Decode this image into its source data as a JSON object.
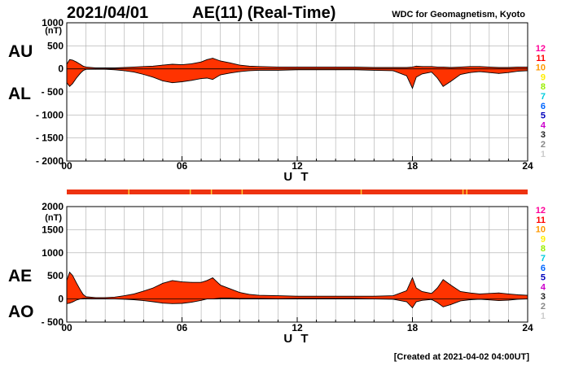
{
  "header": {
    "date": "2021/04/01",
    "title": "AE(11) (Real-Time)",
    "source": "WDC for Geomagnetism, Kyoto"
  },
  "footer": {
    "created": "[Created at 2021-04-02 04:00UT]"
  },
  "colors": {
    "fill": "#ff3300",
    "line": "#000000",
    "grid": "#aaaaaa",
    "bar": "#ee3311",
    "bar_tick": "#ffcc33"
  },
  "legend": {
    "items": [
      {
        "label": "12",
        "color": "#ff0099"
      },
      {
        "label": "11",
        "color": "#ff0000"
      },
      {
        "label": "10",
        "color": "#ff9900"
      },
      {
        "label": "9",
        "color": "#ffee00"
      },
      {
        "label": "8",
        "color": "#99ee00"
      },
      {
        "label": "7",
        "color": "#00ccdd"
      },
      {
        "label": "6",
        "color": "#0066ff"
      },
      {
        "label": "5",
        "color": "#0000bb"
      },
      {
        "label": "4",
        "color": "#cc00cc"
      },
      {
        "label": "3",
        "color": "#222222"
      },
      {
        "label": "2",
        "color": "#888888"
      },
      {
        "label": "1",
        "color": "#cccccc"
      }
    ]
  },
  "chart_data": [
    {
      "type": "area",
      "upper_label": "AU",
      "lower_label": "AL",
      "unit": "(nT)",
      "xlabel": "U T",
      "xlim": [
        0,
        24
      ],
      "ylim": [
        -2000,
        1000
      ],
      "x_ticks": [
        "00",
        "06",
        "12",
        "18",
        "24"
      ],
      "y_ticks": [
        "1000",
        "500",
        "0",
        "- 500",
        "- 1000",
        "- 1500",
        "- 2000"
      ],
      "grid": true,
      "series": [
        {
          "name": "AU",
          "x": [
            0,
            0.15,
            0.3,
            0.5,
            0.7,
            0.85,
            1,
            1.5,
            2,
            2.5,
            3,
            3.5,
            4,
            4.5,
            5,
            5.5,
            6,
            6.5,
            7,
            7.3,
            7.6,
            8,
            8.5,
            9,
            9.5,
            10,
            11,
            12,
            13,
            14,
            15,
            16,
            17,
            17.7,
            18,
            18.2,
            18.5,
            19,
            19.3,
            19.6,
            20,
            20.5,
            21,
            21.5,
            22,
            22.5,
            23,
            23.5,
            24
          ],
          "values": [
            100,
            200,
            190,
            150,
            100,
            60,
            40,
            20,
            20,
            20,
            30,
            40,
            50,
            60,
            80,
            100,
            90,
            110,
            150,
            200,
            230,
            170,
            130,
            80,
            60,
            50,
            40,
            40,
            40,
            40,
            40,
            30,
            30,
            30,
            40,
            60,
            50,
            50,
            40,
            40,
            30,
            40,
            50,
            50,
            40,
            30,
            30,
            40,
            40
          ]
        },
        {
          "name": "AL",
          "x": [
            0,
            0.15,
            0.3,
            0.5,
            0.7,
            0.85,
            1,
            1.5,
            2,
            2.5,
            3,
            3.5,
            4,
            4.5,
            5,
            5.5,
            6,
            6.5,
            7,
            7.3,
            7.6,
            8,
            8.5,
            9,
            9.5,
            10,
            11,
            12,
            13,
            14,
            15,
            16,
            17,
            17.7,
            18,
            18.2,
            18.5,
            19,
            19.3,
            19.6,
            20,
            20.5,
            21,
            21.5,
            22,
            22.5,
            23,
            23.5,
            24
          ],
          "values": [
            -300,
            -380,
            -320,
            -200,
            -100,
            -40,
            -10,
            -10,
            -10,
            -20,
            -40,
            -70,
            -120,
            -180,
            -260,
            -300,
            -280,
            -250,
            -210,
            -200,
            -230,
            -130,
            -90,
            -60,
            -40,
            -30,
            -30,
            -20,
            -20,
            -20,
            -20,
            -30,
            -40,
            -150,
            -420,
            -180,
            -110,
            -70,
            -200,
            -380,
            -270,
            -120,
            -80,
            -60,
            -80,
            -100,
            -80,
            -50,
            -40
          ]
        }
      ]
    },
    {
      "type": "area",
      "upper_label": "AE",
      "lower_label": "AO",
      "unit": "(nT)",
      "xlabel": "U T",
      "xlim": [
        0,
        24
      ],
      "ylim": [
        -500,
        2000
      ],
      "x_ticks": [
        "00",
        "06",
        "12",
        "18",
        "24"
      ],
      "y_ticks": [
        "2000",
        "1500",
        "1000",
        "500",
        "0",
        "- 500"
      ],
      "grid": true,
      "series": [
        {
          "name": "AE",
          "x": [
            0,
            0.15,
            0.3,
            0.5,
            0.7,
            0.85,
            1,
            1.5,
            2,
            2.5,
            3,
            3.5,
            4,
            4.5,
            5,
            5.5,
            6,
            6.5,
            7,
            7.3,
            7.6,
            8,
            8.5,
            9,
            9.5,
            10,
            11,
            12,
            13,
            14,
            15,
            16,
            17,
            17.7,
            18,
            18.2,
            18.5,
            19,
            19.3,
            19.6,
            20,
            20.5,
            21,
            21.5,
            22,
            22.5,
            23,
            23.5,
            24
          ],
          "values": [
            400,
            580,
            510,
            350,
            200,
            100,
            50,
            30,
            30,
            40,
            70,
            110,
            170,
            240,
            340,
            400,
            370,
            360,
            360,
            400,
            460,
            300,
            220,
            140,
            100,
            80,
            70,
            60,
            60,
            60,
            60,
            60,
            70,
            180,
            460,
            240,
            160,
            120,
            240,
            420,
            300,
            160,
            130,
            110,
            120,
            130,
            110,
            90,
            80
          ]
        },
        {
          "name": "AO",
          "x": [
            0,
            0.15,
            0.3,
            0.5,
            0.7,
            0.85,
            1,
            1.5,
            2,
            2.5,
            3,
            3.5,
            4,
            4.5,
            5,
            5.5,
            6,
            6.5,
            7,
            7.3,
            7.6,
            8,
            8.5,
            9,
            9.5,
            10,
            11,
            12,
            13,
            14,
            15,
            16,
            17,
            17.7,
            18,
            18.2,
            18.5,
            19,
            19.3,
            19.6,
            20,
            20.5,
            21,
            21.5,
            22,
            22.5,
            23,
            23.5,
            24
          ],
          "values": [
            -100,
            -90,
            -65,
            -25,
            0,
            10,
            15,
            5,
            5,
            0,
            -5,
            -15,
            -35,
            -60,
            -90,
            -100,
            -95,
            -70,
            -30,
            0,
            0,
            20,
            20,
            10,
            10,
            10,
            5,
            10,
            10,
            10,
            10,
            0,
            -5,
            -60,
            -190,
            -60,
            -30,
            -10,
            -80,
            -170,
            -120,
            -40,
            -15,
            -5,
            -20,
            -35,
            -25,
            -5,
            0
          ]
        }
      ]
    }
  ]
}
